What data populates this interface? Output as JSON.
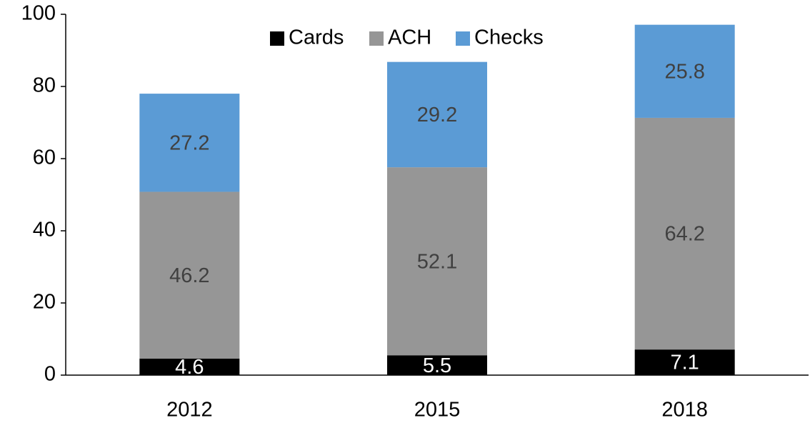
{
  "chart_data": {
    "type": "stacked-bar",
    "categories": [
      "2012",
      "2015",
      "2018"
    ],
    "series": [
      {
        "name": "Cards",
        "color": "#000000",
        "values": [
          4.6,
          5.5,
          7.1
        ]
      },
      {
        "name": "ACH",
        "color": "#969696",
        "values": [
          46.2,
          52.1,
          64.2
        ]
      },
      {
        "name": "Checks",
        "color": "#5b9bd5",
        "values": [
          27.2,
          29.2,
          25.8
        ]
      }
    ],
    "ylim": [
      0,
      100
    ],
    "yticks": [
      0,
      20,
      40,
      60,
      80,
      100
    ],
    "grid": false,
    "legend": "top"
  }
}
